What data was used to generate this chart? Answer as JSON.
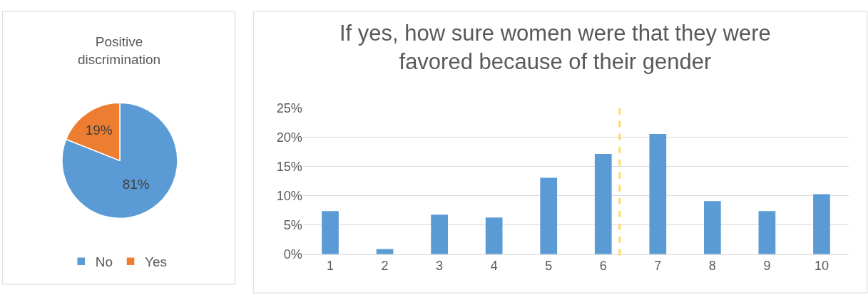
{
  "chart_data": [
    {
      "type": "pie",
      "title": "Positive discrimination",
      "categories": [
        "No",
        "Yes"
      ],
      "values": [
        81,
        19
      ],
      "colors": [
        "#5b9bd5",
        "#ed7d31"
      ],
      "value_labels": [
        "81%",
        "19%"
      ],
      "legend": "bottom"
    },
    {
      "type": "bar",
      "title": "If yes, how sure women were that they were favored because of their gender",
      "x": [
        1,
        2,
        3,
        4,
        5,
        6,
        7,
        8,
        9,
        10
      ],
      "values": [
        7.4,
        0.9,
        6.8,
        6.3,
        13.1,
        17.2,
        20.6,
        9.1,
        7.4,
        10.3
      ],
      "color": "#5b9bd5",
      "xlim": [
        0.5,
        10.5
      ],
      "xticks": [
        1,
        2,
        3,
        4,
        5,
        6,
        7,
        8,
        9,
        10
      ],
      "ylim": [
        0,
        25
      ],
      "yticks": [
        {
          "value": 0,
          "label": "0%"
        },
        {
          "value": 5,
          "label": "5%"
        },
        {
          "value": 10,
          "label": "10%"
        },
        {
          "value": 15,
          "label": "15%"
        },
        {
          "value": 20,
          "label": "20%"
        },
        {
          "value": 25,
          "label": "25%"
        }
      ],
      "grid": "y",
      "ref_lines": [
        {
          "axis": "x",
          "value": 6.3,
          "color": "#ffd966",
          "line_style": "dashed"
        }
      ]
    }
  ]
}
